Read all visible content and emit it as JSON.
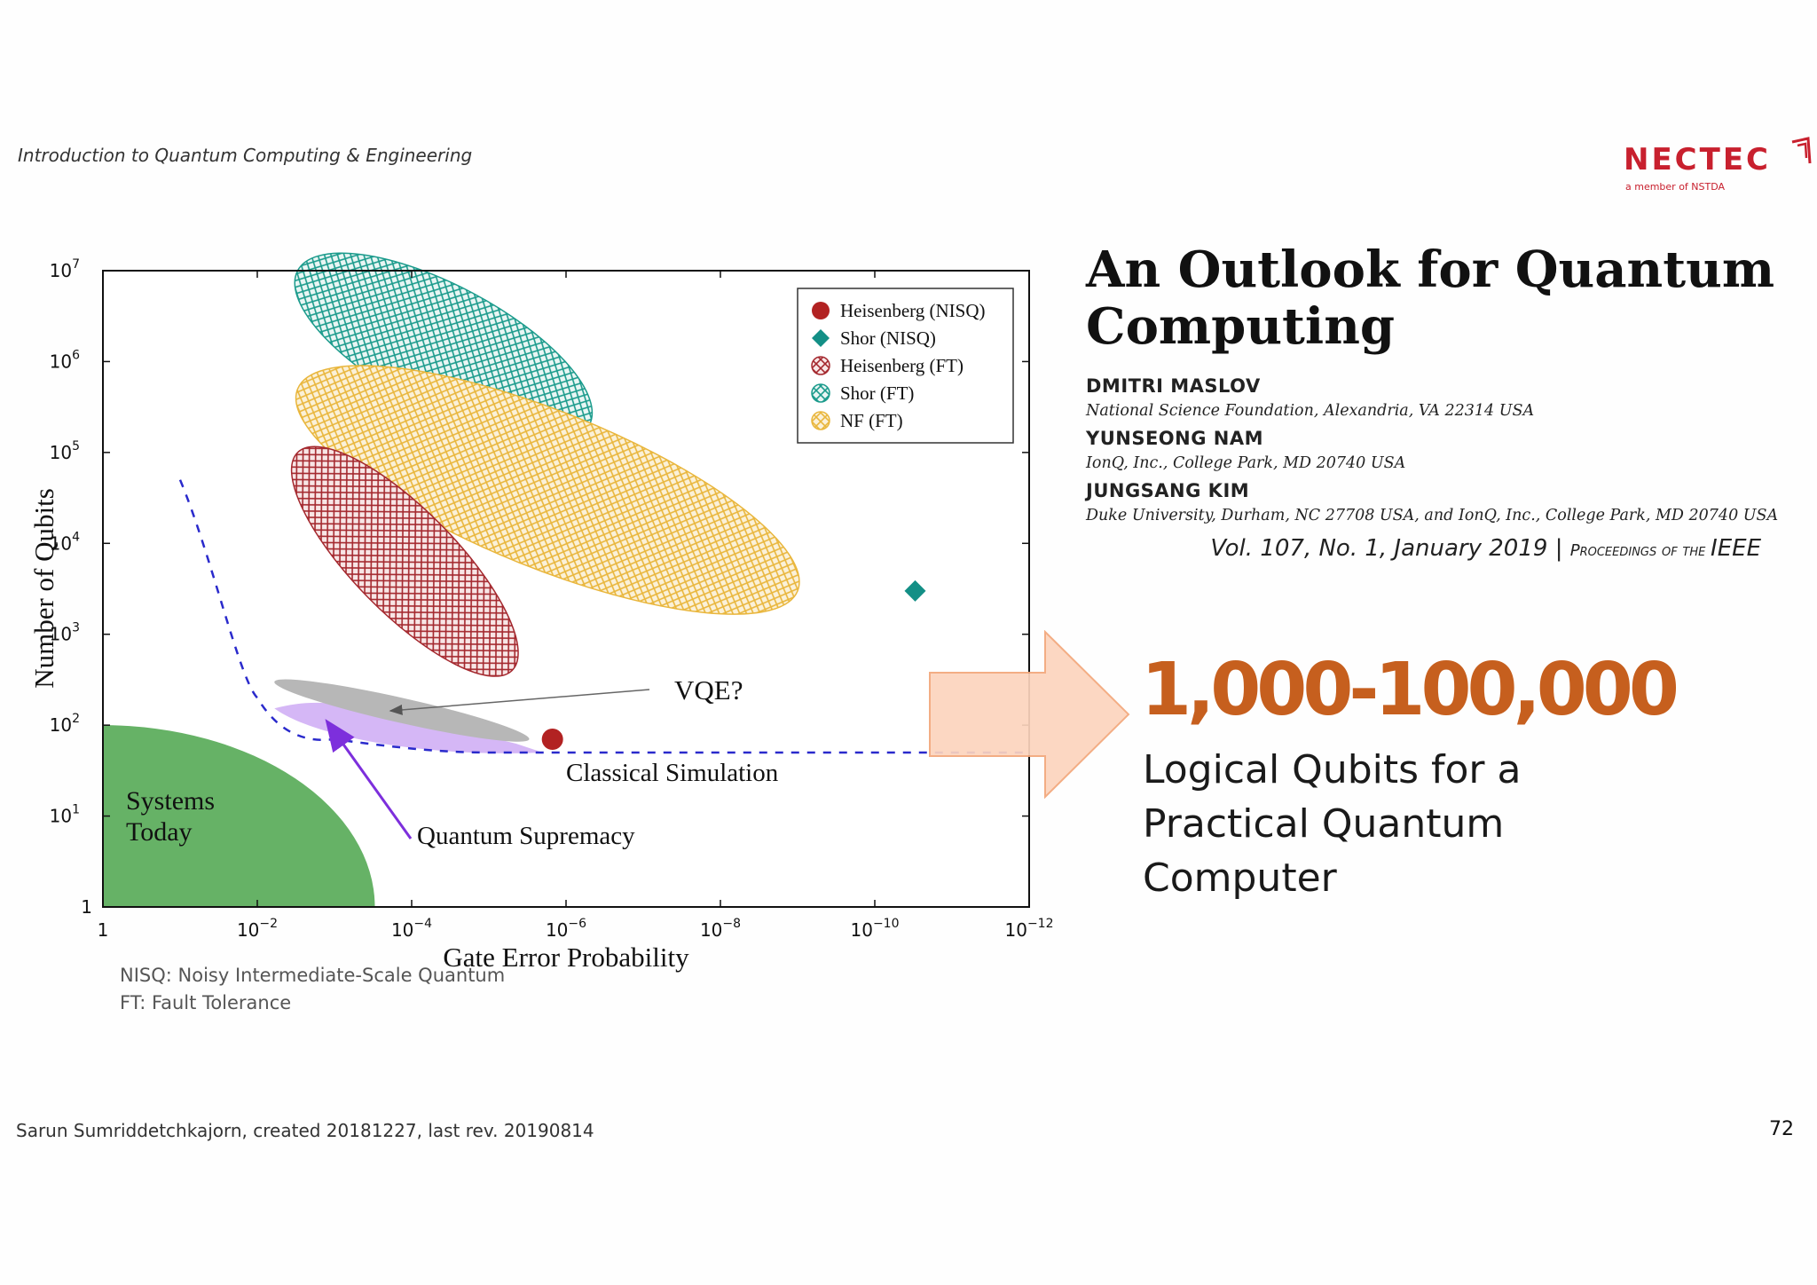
{
  "header": {
    "course_title": "Introduction to Quantum Computing & Engineering",
    "logo_text": "NECTEC",
    "logo_subtext": "a member of NSTDA"
  },
  "colors": {
    "heisenberg_nisq": "#b22222",
    "shor_nisq": "#138f86",
    "heisenberg_ft": "#a4282e",
    "shor_ft": "#1b9b8c",
    "nf_ft": "#e9b63c",
    "systems_today": "#66b266",
    "vqe": "#b7b7b7",
    "quantum_supremacy": "#d5b7f6",
    "classical_simulation_line": "#2a2acc",
    "accent_orange": "#c65f1e",
    "arrow_fill": "#fcd4bd",
    "arrow_stroke": "#f3a77a"
  },
  "chart_data": {
    "type": "scatter",
    "x_scale": "log-reversed",
    "y_scale": "log",
    "xlabel": "Gate Error Probability",
    "ylabel": "Number of Qubits",
    "xlim": [
      1,
      1e-12
    ],
    "ylim": [
      1,
      10000000.0
    ],
    "x_ticks": [
      {
        "value": 1,
        "base": "1",
        "exp": ""
      },
      {
        "value": 0.01,
        "base": "10",
        "exp": "−2"
      },
      {
        "value": 0.0001,
        "base": "10",
        "exp": "−4"
      },
      {
        "value": 1e-06,
        "base": "10",
        "exp": "−6"
      },
      {
        "value": 1e-08,
        "base": "10",
        "exp": "−8"
      },
      {
        "value": 1e-10,
        "base": "10",
        "exp": "−10"
      },
      {
        "value": 1e-12,
        "base": "10",
        "exp": "−12"
      }
    ],
    "y_ticks": [
      {
        "value": 1,
        "base": "1",
        "exp": ""
      },
      {
        "value": 10,
        "base": "10",
        "exp": "1"
      },
      {
        "value": 100,
        "base": "10",
        "exp": "2"
      },
      {
        "value": 1000,
        "base": "10",
        "exp": "3"
      },
      {
        "value": 10000,
        "base": "10",
        "exp": "4"
      },
      {
        "value": 100000,
        "base": "10",
        "exp": "5"
      },
      {
        "value": 1000000,
        "base": "10",
        "exp": "6"
      },
      {
        "value": 10000000,
        "base": "10",
        "exp": "7"
      }
    ],
    "legend": [
      {
        "label": "Heisenberg (NISQ)",
        "marker": "circle",
        "color": "#b22222"
      },
      {
        "label": "Shor (NISQ)",
        "marker": "diamond",
        "color": "#138f86"
      },
      {
        "label": "Heisenberg (FT)",
        "marker": "hatched-circle",
        "color": "#a4282e"
      },
      {
        "label": "Shor (FT)",
        "marker": "hatched-circle",
        "color": "#1b9b8c"
      },
      {
        "label": "NF (FT)",
        "marker": "hatched-circle",
        "color": "#e9b63c"
      }
    ],
    "legend_position": "top-right",
    "points": [
      {
        "series": "Heisenberg (NISQ)",
        "x": 1.5e-06,
        "y": 70
      },
      {
        "series": "Shor (NISQ)",
        "x": 3e-11,
        "y": 3000
      }
    ],
    "regions": [
      {
        "series": "Shor (FT)",
        "x_range": [
          0.003,
          5e-07
        ],
        "y_range": [
          200000,
          10000000
        ]
      },
      {
        "series": "NF (FT)",
        "x_range": [
          0.003,
          1e-09
        ],
        "y_range": [
          3000,
          500000
        ]
      },
      {
        "series": "Heisenberg (FT)",
        "x_range": [
          0.003,
          5e-06
        ],
        "y_range": [
          400,
          100000
        ]
      },
      {
        "series": "VQE?",
        "x_range": [
          0.006,
          3e-06
        ],
        "y_range": [
          70,
          300
        ]
      },
      {
        "series": "Quantum Supremacy",
        "x_range": [
          0.006,
          2e-06
        ],
        "y_range": [
          50,
          200
        ]
      },
      {
        "series": "Systems Today",
        "x_range": [
          1,
          0.0003
        ],
        "y_range": [
          1,
          100
        ]
      }
    ],
    "classical_simulation_boundary": [
      {
        "x": 0.1,
        "y": 50000
      },
      {
        "x": 0.03,
        "y": 3000
      },
      {
        "x": 0.01,
        "y": 200
      },
      {
        "x": 0.001,
        "y": 70
      },
      {
        "x": 1e-05,
        "y": 50
      },
      {
        "x": 1e-12,
        "y": 50
      }
    ],
    "annotations": {
      "vqe": "VQE?",
      "classical_simulation": "Classical Simulation",
      "quantum_supremacy": "Quantum Supremacy",
      "systems_today_line1": "Systems",
      "systems_today_line2": "Today"
    }
  },
  "paper": {
    "title_line1": "An Outlook for Quantum",
    "title_line2": "Computing",
    "authors": [
      {
        "name": "DMITRI MASLOV",
        "affiliation": "National Science Foundation, Alexandria, VA 22314 USA"
      },
      {
        "name": "YUNSEONG NAM",
        "affiliation": "IonQ, Inc., College Park, MD 20740 USA"
      },
      {
        "name": "JUNGSANG KIM",
        "affiliation": "Duke University, Durham, NC 27708 USA, and IonQ, Inc., College Park, MD 20740 USA"
      }
    ],
    "citation_vol": "Vol. 107, No. 1, January 2019 | ",
    "citation_journal_prefix": "Proceedings of the ",
    "citation_journal_name": "IEEE"
  },
  "highlight": {
    "number": "1,000-100,000",
    "line1": "Logical Qubits for a",
    "line2": "Practical Quantum",
    "line3": "Computer"
  },
  "notes": {
    "nisq": "NISQ: Noisy Intermediate-Scale Quantum",
    "ft": "FT: Fault Tolerance"
  },
  "footer": {
    "credit": "Sarun Sumriddetchkajorn, created 20181227, last rev. 20190814",
    "page_number": "72"
  }
}
